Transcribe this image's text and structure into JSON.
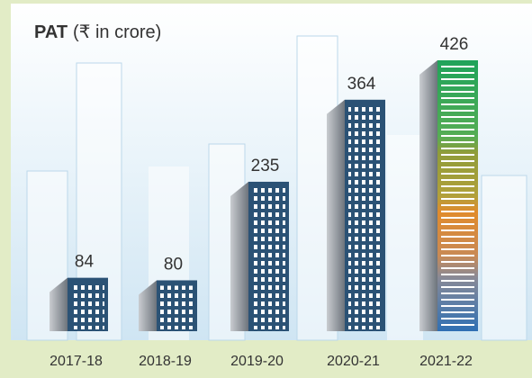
{
  "chart_data": {
    "type": "bar",
    "title": "PAT",
    "subtitle": "(₹ in crore)",
    "categories": [
      "2017-18",
      "2018-19",
      "2019-20",
      "2020-21",
      "2021-22"
    ],
    "values": [
      84,
      80,
      235,
      364,
      426
    ],
    "color": "#2b5275",
    "highlight_color": "multicolor"
  }
}
